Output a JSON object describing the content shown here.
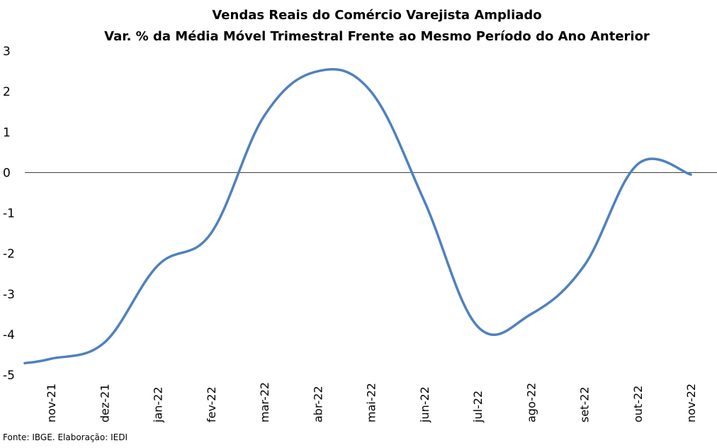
{
  "chart_data": {
    "type": "line",
    "title": "Vendas Reais do Comércio Varejista Ampliado",
    "subtitle": "Var. % da Média Móvel Trimestral Frente ao Mesmo Período do Ano Anterior",
    "xlabel": "",
    "ylabel": "",
    "categories": [
      "nov-21",
      "dez-21",
      "jan-22",
      "fev-22",
      "mar-22",
      "abr-22",
      "mai-22",
      "jun-22",
      "jul-22",
      "ago-22",
      "set-22",
      "out-22",
      "nov-22"
    ],
    "yticks": [
      "3",
      "2",
      "1",
      "0",
      "-1",
      "-2",
      "-3",
      "-4",
      "-5"
    ],
    "ylim": [
      -5,
      3
    ],
    "grid": false,
    "zero_line": true,
    "series": [
      {
        "color": "#4F81BD",
        "values": [
          -4.6,
          -4.2,
          -2.3,
          -1.5,
          1.4,
          2.5,
          2.0,
          -0.7,
          -3.8,
          -3.5,
          -2.3,
          0.2,
          -0.05
        ]
      }
    ],
    "source": "Fonte: IBGE. Elaboração: IEDI"
  }
}
